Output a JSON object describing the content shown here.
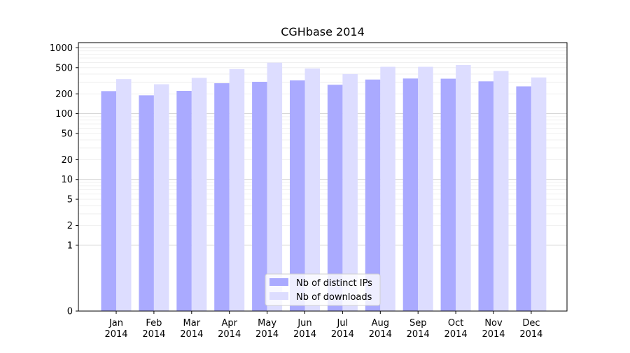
{
  "chart_data": {
    "type": "bar",
    "title": "CGHbase 2014",
    "xlabel": "",
    "ylabel": "",
    "yscale": "symlog",
    "ylim": [
      0,
      1200
    ],
    "yticks": [
      0,
      1,
      2,
      5,
      10,
      20,
      50,
      100,
      200,
      500,
      1000
    ],
    "grid": true,
    "legend_position": "lower-center",
    "categories": [
      "Jan\n2014",
      "Feb\n2014",
      "Mar\n2014",
      "Apr\n2014",
      "May\n2014",
      "Jun\n2014",
      "Jul\n2014",
      "Aug\n2014",
      "Sep\n2014",
      "Oct\n2014",
      "Nov\n2014",
      "Dec\n2014"
    ],
    "series": [
      {
        "name": "Nb of distinct IPs",
        "color": "#aaaaff",
        "values": [
          220,
          190,
          222,
          290,
          305,
          320,
          275,
          330,
          342,
          340,
          310,
          260
        ]
      },
      {
        "name": "Nb of downloads",
        "color": "#ddddff",
        "values": [
          335,
          280,
          350,
          475,
          595,
          485,
          400,
          515,
          515,
          550,
          445,
          355
        ]
      }
    ]
  }
}
